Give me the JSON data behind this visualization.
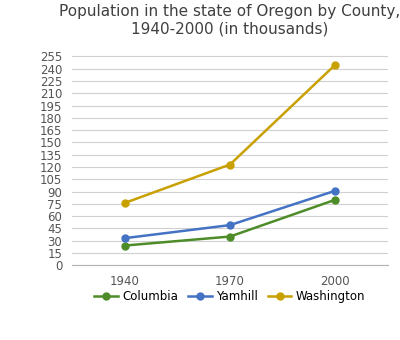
{
  "title": "Population in the state of Oregon by County,\n1940-2000 (in thousands)",
  "years": [
    1940,
    1970,
    2000
  ],
  "series": [
    {
      "name": "Columbia",
      "values": [
        24,
        35,
        80
      ],
      "color": "#4d8c28",
      "marker": "o"
    },
    {
      "name": "Yamhill",
      "values": [
        33,
        49,
        91
      ],
      "color": "#4472c4",
      "marker": "o"
    },
    {
      "name": "Washington",
      "values": [
        76,
        123,
        245
      ],
      "color": "#c8a000",
      "marker": "o"
    }
  ],
  "ylim": [
    0,
    270
  ],
  "yticks": [
    0,
    15,
    30,
    45,
    60,
    75,
    90,
    105,
    120,
    135,
    150,
    165,
    180,
    195,
    210,
    225,
    240,
    255
  ],
  "xticks": [
    1940,
    1970,
    2000
  ],
  "xlim": [
    1925,
    2015
  ],
  "background_color": "#ffffff",
  "grid_color": "#d0d0d0",
  "title_fontsize": 11,
  "tick_fontsize": 8.5,
  "legend_fontsize": 8.5
}
